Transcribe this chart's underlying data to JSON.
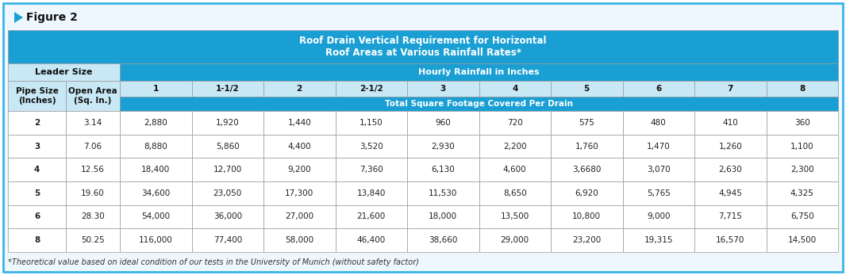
{
  "figure_label": "Figure 2",
  "main_title": "Roof Drain Vertical Requirement for Horizontal\nRoof Areas at Various Rainfall Rates*",
  "leader_size_label": "Leader Size",
  "hourly_rainfall_label": "Hourly Rainfall in Inches",
  "pipe_size_label": "Pipe Size\n(Inches)",
  "open_area_label": "Open Area\n(Sq. In.)",
  "rainfall_cols": [
    "1",
    "1-1/2",
    "2",
    "2-1/2",
    "3",
    "4",
    "5",
    "6",
    "7",
    "8"
  ],
  "total_sq_ft_label": "Total Square Footage Covered Per Drain",
  "data_rows": [
    [
      "2",
      "3.14",
      "2,880",
      "1,920",
      "1,440",
      "1,150",
      "960",
      "720",
      "575",
      "480",
      "410",
      "360"
    ],
    [
      "3",
      "7.06",
      "8,880",
      "5,860",
      "4,400",
      "3,520",
      "2,930",
      "2,200",
      "1,760",
      "1,470",
      "1,260",
      "1,100"
    ],
    [
      "4",
      "12.56",
      "18,400",
      "12,700",
      "9,200",
      "7,360",
      "6,130",
      "4,600",
      "3,6680",
      "3,070",
      "2,630",
      "2,300"
    ],
    [
      "5",
      "19.60",
      "34,600",
      "23,050",
      "17,300",
      "13,840",
      "11,530",
      "8,650",
      "6,920",
      "5,765",
      "4,945",
      "4,325"
    ],
    [
      "6",
      "28.30",
      "54,000",
      "36,000",
      "27,000",
      "21,600",
      "18,000",
      "13,500",
      "10,800",
      "9,000",
      "7,715",
      "6,750"
    ],
    [
      "8",
      "50.25",
      "116,000",
      "77,400",
      "58,000",
      "46,400",
      "38,660",
      "29,000",
      "23,200",
      "19,315",
      "16,570",
      "14,500"
    ]
  ],
  "footer_note": "*Theoretical value based on ideal condition of our tests in the University of Munich (without safety factor)",
  "colors": {
    "outer_border": "#3ab4e8",
    "main_title_bg": "#1a9fd4",
    "main_title_text": "#ffffff",
    "leader_size_bg": "#c8e8f5",
    "hourly_rainfall_bg": "#1a9fd4",
    "hourly_rainfall_text": "#ffffff",
    "subheader_bg": "#c8e8f5",
    "subheader_text_dark": "#111111",
    "rainfall_nums_bg": "#c8e8f5",
    "total_sq_ft_bg": "#1a9fd4",
    "total_sq_ft_text": "#ffffff",
    "data_row_bg": "#ffffff",
    "cell_text": "#222222",
    "header_text_dark": "#111111",
    "grid_line": "#999999",
    "figure_label_text": "#111111",
    "arrow_color": "#1a9fd4",
    "outer_bg": "#eef7fd",
    "page_bg": "#ffffff"
  },
  "font_sizes": {
    "figure_label": 10,
    "main_title": 8.5,
    "header": 8,
    "subheader": 7.5,
    "data": 7.5,
    "footer": 7
  }
}
